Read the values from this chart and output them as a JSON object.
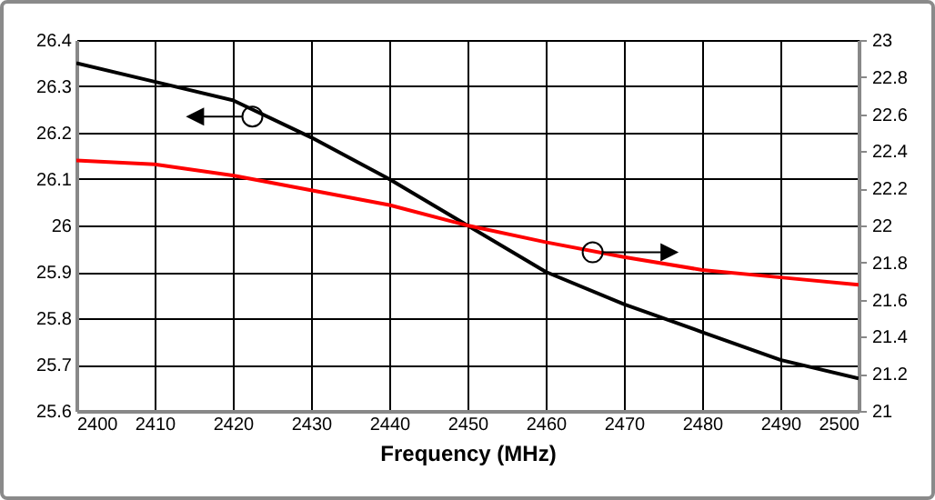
{
  "chart_data": {
    "type": "line",
    "xlabel": "Frequency (MHz)",
    "x": [
      2400,
      2410,
      2420,
      2430,
      2440,
      2450,
      2460,
      2470,
      2480,
      2490,
      2500
    ],
    "series": [
      {
        "color": "#000000",
        "values": [
          26.35,
          26.31,
          26.27,
          26.19,
          26.1,
          26.0,
          25.9,
          25.83,
          25.77,
          25.71,
          25.67
        ]
      },
      {
        "color": "#ff0000",
        "axis": "y2",
        "values": [
          22.35,
          22.33,
          22.27,
          22.19,
          22.11,
          22.0,
          21.91,
          21.83,
          21.76,
          21.72,
          21.68
        ]
      }
    ],
    "xlim": [
      2400,
      2500
    ],
    "xticks": [
      2400,
      2410,
      2420,
      2430,
      2440,
      2450,
      2460,
      2470,
      2480,
      2490,
      2500
    ],
    "ylim": [
      25.6,
      26.4
    ],
    "yticks": [
      25.6,
      25.7,
      25.8,
      25.9,
      26,
      26.1,
      26.2,
      26.3,
      26.4
    ],
    "y2lim": [
      21,
      23
    ],
    "y2ticks": [
      21,
      21.2,
      21.4,
      21.6,
      21.8,
      22,
      22.2,
      22.4,
      22.6,
      22.8,
      23
    ],
    "grid": true
  }
}
